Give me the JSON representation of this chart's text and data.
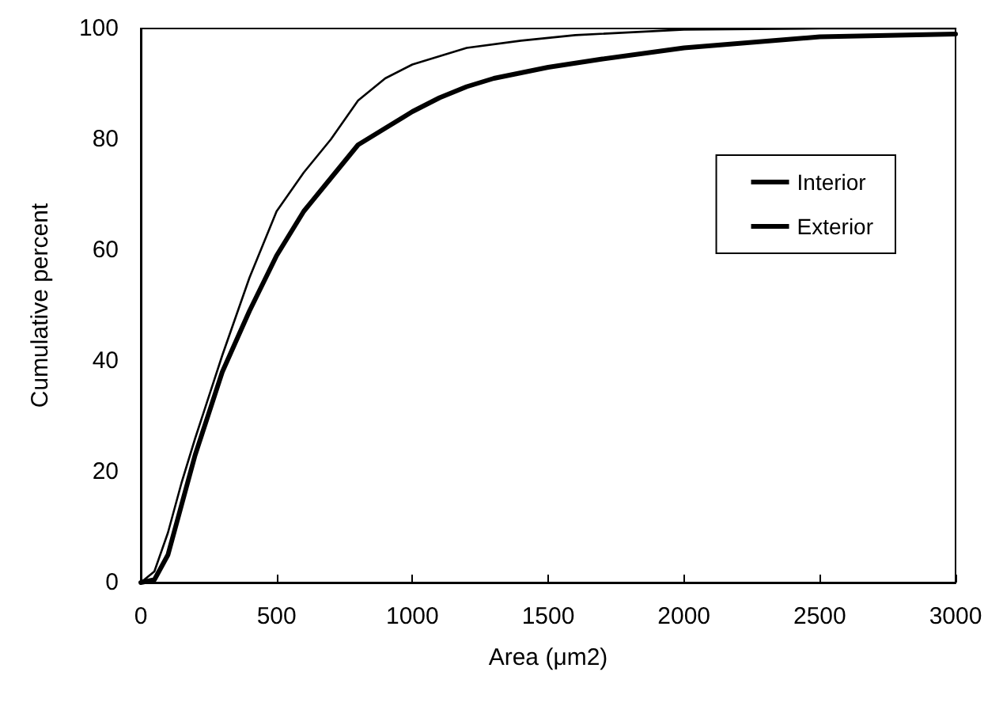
{
  "chart_data": {
    "type": "line",
    "xlabel": "Area (μm2)",
    "ylabel": "Cumulative percent",
    "xlim": [
      0,
      3000
    ],
    "ylim": [
      0,
      100
    ],
    "xticks": [
      0,
      500,
      1000,
      1500,
      2000,
      2500,
      3000
    ],
    "yticks": [
      0,
      20,
      40,
      60,
      80,
      100
    ],
    "grid": false,
    "legend": "right",
    "marker": "none",
    "line_style": "solid",
    "series": [
      {
        "name": "Interior",
        "color": "#000000",
        "x": [
          0,
          50,
          100,
          150,
          200,
          300,
          400,
          500,
          600,
          700,
          800,
          900,
          1000,
          1100,
          1200,
          1300,
          1400,
          1500,
          1700,
          2000,
          2500,
          3000
        ],
        "values": [
          0,
          0.5,
          5,
          14,
          23,
          38,
          49,
          59,
          67,
          73,
          79,
          82,
          85,
          87.5,
          89.5,
          91,
          92,
          93,
          94.5,
          96.5,
          98.5,
          99
        ]
      },
      {
        "name": "Exterior",
        "color": "#000000",
        "x": [
          0,
          50,
          100,
          150,
          200,
          300,
          400,
          500,
          600,
          700,
          800,
          900,
          1000,
          1100,
          1200,
          1400,
          1600,
          2000,
          2500,
          3000
        ],
        "values": [
          0,
          2,
          9,
          18,
          26,
          41,
          55,
          67,
          74,
          80,
          87,
          91,
          93.5,
          95,
          96.5,
          97.8,
          98.8,
          99.8,
          100,
          100
        ]
      }
    ]
  }
}
